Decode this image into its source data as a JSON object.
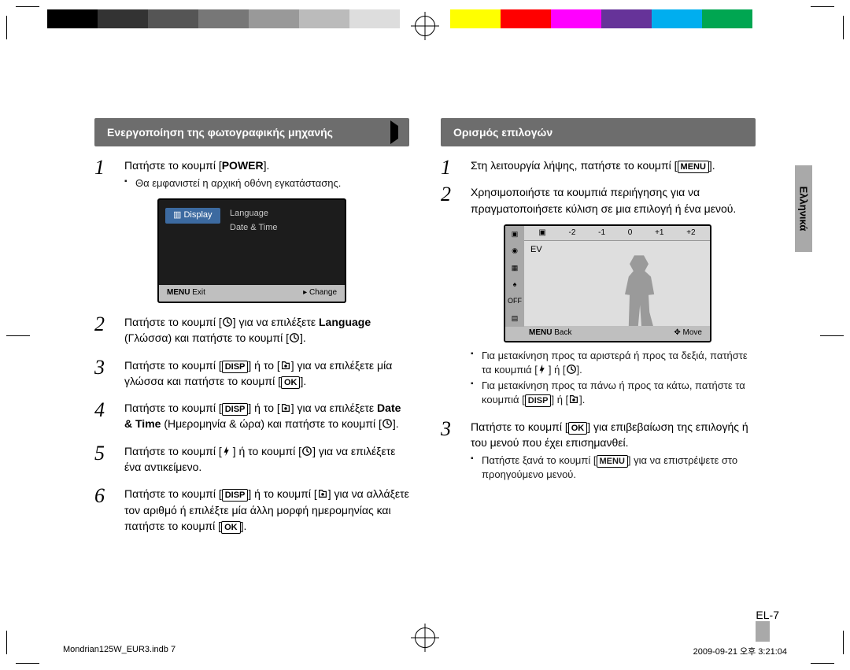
{
  "colorbar": [
    "#000000",
    "#333333",
    "#555555",
    "#777777",
    "#999999",
    "#bbbbbb",
    "#dddddd",
    "#ffffff",
    "#ffff00",
    "#ff0000",
    "#ff00ff",
    "#663399",
    "#00aeef",
    "#00a651",
    "#ffffff"
  ],
  "left": {
    "header": "Ενεργοποίηση της φωτογραφικής μηχανής",
    "steps": [
      {
        "n": "1",
        "html": "Πατήστε το κουμπί [<b>POWER</b>].",
        "sub": [
          "Θα εμφανιστεί η αρχική οθόνη εγκατάστασης."
        ]
      },
      {
        "n": "2",
        "html": "Πατήστε το κουμπί [<svg class='icn' viewBox='0 0 16 16'><circle cx='8' cy='8' r='6' fill='none' stroke='#000' stroke-width='1.5'/><path d='M8 4v4l3 2' stroke='#000' stroke-width='1.5' fill='none'/></svg>] για να επιλέξετε <b>Language</b> (Γλώσσα) και πατήστε το κουμπί [<svg class='icn' viewBox='0 0 16 16'><circle cx='8' cy='8' r='6' fill='none' stroke='#000' stroke-width='1.5'/><path d='M8 4v4l3 2' stroke='#000' stroke-width='1.5' fill='none'/></svg>]."
      },
      {
        "n": "3",
        "html": "Πατήστε το κουμπί [<span class='key'>DISP</span>] ή το [<svg class='icn' viewBox='0 0 16 16'><path d='M3 3h4l2 2h4v8H3z' fill='none' stroke='#000' stroke-width='1.4'/><circle cx='8' cy='9' r='2' fill='#000'/></svg>] για να επιλέξετε μία γλώσσα και πατήστε το κουμπί [<span class='key'>OK</span>]."
      },
      {
        "n": "4",
        "html": "Πατήστε το κουμπί [<span class='key'>DISP</span>] ή το [<svg class='icn' viewBox='0 0 16 16'><path d='M3 3h4l2 2h4v8H3z' fill='none' stroke='#000' stroke-width='1.4'/><circle cx='8' cy='9' r='2' fill='#000'/></svg>] για να επιλέξετε <b>Date & Time</b> (Ημερομηνία & ώρα) και πατήστε το κουμπί [<svg class='icn' viewBox='0 0 16 16'><circle cx='8' cy='8' r='6' fill='none' stroke='#000' stroke-width='1.5'/><path d='M8 4v4l3 2' stroke='#000' stroke-width='1.5' fill='none'/></svg>]."
      },
      {
        "n": "5",
        "html": "Πατήστε το κουμπί [<svg class='icn' viewBox='0 0 16 16'><path d='M7 1l-4 9h3l-1 5 5-9h-3z' fill='#000'/></svg>] ή το κουμπί [<svg class='icn' viewBox='0 0 16 16'><circle cx='8' cy='8' r='6' fill='none' stroke='#000' stroke-width='1.5'/><path d='M8 4v4l3 2' stroke='#000' stroke-width='1.5' fill='none'/></svg>] για να επιλέξετε ένα αντικείμενο."
      },
      {
        "n": "6",
        "html": "Πατήστε το κουμπί [<span class='key'>DISP</span>] ή το κουμπί [<svg class='icn' viewBox='0 0 16 16'><path d='M3 3h4l2 2h4v8H3z' fill='none' stroke='#000' stroke-width='1.4'/><circle cx='8' cy='9' r='2' fill='#000'/></svg>] για να αλλάξετε τον αριθμό ή επιλέξτε μία άλλη μορφή ημερομηνίας και πατήστε το κουμπί [<span class='key'>OK</span>]."
      }
    ],
    "ui": {
      "tab": "Display",
      "opt1": "Language",
      "opt2": "Date & Time",
      "exit": "Exit",
      "change": "Change",
      "menu_prefix": "MENU"
    }
  },
  "right": {
    "header": "Ορισμός επιλογών",
    "steps": [
      {
        "n": "1",
        "html": "Στη λειτουργία λήψης, πατήστε το κουμπί [<span class='key'>MENU</span>]."
      },
      {
        "n": "2",
        "html": "Χρησιμοποιήστε τα κουμπιά περιήγησης για να πραγματοποιήσετε κύλιση σε μια επιλογή ή ένα μενού.",
        "sub_after_ui": [
          "Για μετακίνηση προς τα αριστερά ή προς τα δεξιά, πατήστε τα κουμπιά [<svg class='icn' viewBox='0 0 16 16'><path d='M7 1l-4 9h3l-1 5 5-9h-3z' fill='#000'/></svg>] ή [<svg class='icn' viewBox='0 0 16 16'><circle cx='8' cy='8' r='6' fill='none' stroke='#000' stroke-width='1.5'/><path d='M8 4v4l3 2' stroke='#000' stroke-width='1.5' fill='none'/></svg>].",
          "Για μετακίνηση προς τα πάνω ή προς τα κάτω, πατήστε τα κουμπιά [<span class='key'>DISP</span>] ή [<svg class='icn' viewBox='0 0 16 16'><path d='M3 3h4l2 2h4v8H3z' fill='none' stroke='#000' stroke-width='1.4'/><circle cx='8' cy='9' r='2' fill='#000'/></svg>]."
        ]
      },
      {
        "n": "3",
        "html": "Πατήστε το κουμπί [<span class='key'>OK</span>] για επιβεβαίωση της επιλογής ή του μενού που έχει επισημανθεί.",
        "sub": [
          "Πατήστε ξανά το κουμπί [<span class='key'>MENU</span>] για να επιστρέψετε στο προηγούμενο μενού."
        ]
      }
    ],
    "ui": {
      "scale": [
        "-2",
        "-1",
        "0",
        "+1",
        "+2"
      ],
      "ev": "EV",
      "back": "Back",
      "move": "Move",
      "menu_prefix": "MENU",
      "side_icons": [
        "▣",
        "◉",
        "▦",
        "♠",
        "OFF",
        "▤"
      ]
    },
    "lang_tab": "Ελληνικά",
    "page_num": "EL-7"
  },
  "footer": {
    "file": "Mondrian125W_EUR3.indb   7",
    "date": "2009-09-21   오후 3:21:04"
  }
}
